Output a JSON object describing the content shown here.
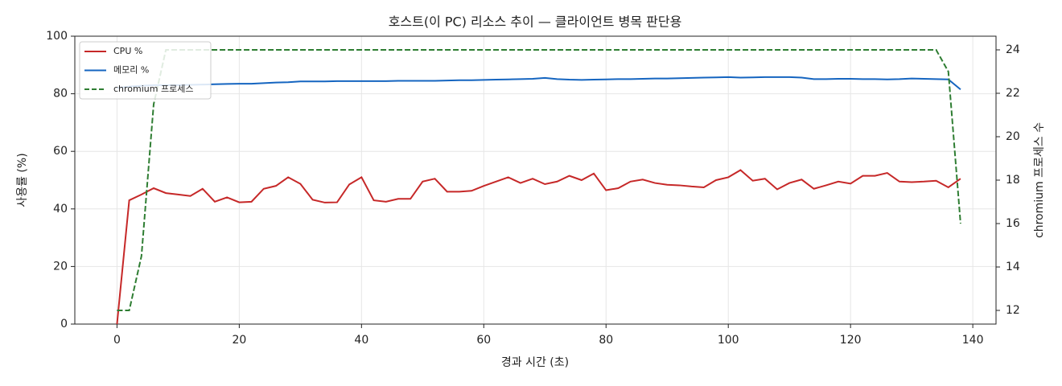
{
  "chart_data": {
    "type": "line",
    "title": "호스트(이 PC) 리소스 추이 — 클라이언트 병목 판단용",
    "xlabel": "경과 시간 (초)",
    "ylabel": "사용률 (%)",
    "y2label": "chromium 프로세스 수",
    "x": [
      0,
      2,
      4,
      6,
      8,
      10,
      12,
      14,
      16,
      18,
      20,
      22,
      24,
      26,
      28,
      30,
      32,
      34,
      36,
      38,
      40,
      42,
      44,
      46,
      48,
      50,
      52,
      54,
      56,
      58,
      60,
      62,
      64,
      66,
      68,
      70,
      72,
      74,
      76,
      78,
      80,
      82,
      84,
      86,
      88,
      90,
      92,
      94,
      96,
      98,
      100,
      102,
      104,
      106,
      108,
      110,
      112,
      114,
      116,
      118,
      120,
      122,
      124,
      126,
      128,
      130,
      132,
      134,
      136,
      138
    ],
    "series": [
      {
        "name": "CPU %",
        "color": "#c62828",
        "linestyle": "solid",
        "values": [
          0,
          43,
          45,
          47.2,
          45.5,
          45,
          44.5,
          47,
          42.5,
          44,
          42.3,
          42.5,
          47,
          48,
          51,
          48.7,
          43.2,
          42.2,
          42.3,
          48.5,
          51,
          43,
          42.5,
          43.5,
          43.5,
          49.5,
          50.5,
          46,
          46,
          46.3,
          48,
          49.5,
          51,
          49,
          50.5,
          48.6,
          49.5,
          51.5,
          50,
          52.3,
          46.5,
          47.2,
          49.5,
          50.2,
          49,
          48.4,
          48.2,
          47.8,
          47.5,
          50,
          51,
          53.5,
          49.8,
          50.5,
          46.8,
          49,
          50.2,
          47,
          48.2,
          49.5,
          48.8,
          51.5,
          51.5,
          52.5,
          49.5,
          49.3,
          49.5,
          49.8,
          47.5,
          50.5
        ]
      },
      {
        "name": "메모리 %",
        "color": "#1565c0",
        "linestyle": "solid",
        "values": [
          82,
          82.5,
          82.8,
          83,
          83,
          83,
          83.1,
          83.2,
          83.3,
          83.4,
          83.5,
          83.5,
          83.7,
          83.9,
          84,
          84.3,
          84.3,
          84.3,
          84.4,
          84.4,
          84.4,
          84.4,
          84.4,
          84.5,
          84.5,
          84.5,
          84.5,
          84.6,
          84.7,
          84.7,
          84.8,
          84.9,
          85,
          85.1,
          85.2,
          85.5,
          85.1,
          84.9,
          84.8,
          84.9,
          85,
          85.1,
          85.1,
          85.2,
          85.3,
          85.3,
          85.4,
          85.5,
          85.6,
          85.7,
          85.8,
          85.6,
          85.7,
          85.8,
          85.8,
          85.8,
          85.6,
          85.1,
          85.1,
          85.2,
          85.2,
          85.1,
          85.1,
          85,
          85.1,
          85.3,
          85.2,
          85.1,
          85,
          81.5
        ]
      },
      {
        "name": "chromium 프로세스",
        "color": "#2e7d32",
        "linestyle": "dashed",
        "axis": "y2",
        "values": [
          12,
          12,
          14.5,
          21.5,
          24,
          24,
          24,
          24,
          24,
          24,
          24,
          24,
          24,
          24,
          24,
          24,
          24,
          24,
          24,
          24,
          24,
          24,
          24,
          24,
          24,
          24,
          24,
          24,
          24,
          24,
          24,
          24,
          24,
          24,
          24,
          24,
          24,
          24,
          24,
          24,
          24,
          24,
          24,
          24,
          24,
          24,
          24,
          24,
          24,
          24,
          24,
          24,
          24,
          24,
          24,
          24,
          24,
          24,
          24,
          24,
          24,
          24,
          24,
          24,
          24,
          24,
          24,
          24,
          23,
          16
        ]
      }
    ],
    "xlim": [
      -6.9,
      143.8
    ],
    "xticks": [
      0,
      20,
      40,
      60,
      80,
      100,
      120,
      140
    ],
    "ylim": [
      0,
      100
    ],
    "yticks": [
      0,
      20,
      40,
      60,
      80,
      100
    ],
    "y2lim": [
      11.37,
      24.63
    ],
    "y2ticks": [
      12,
      14,
      16,
      18,
      20,
      22,
      24
    ],
    "grid": true,
    "legend": "upper left"
  }
}
